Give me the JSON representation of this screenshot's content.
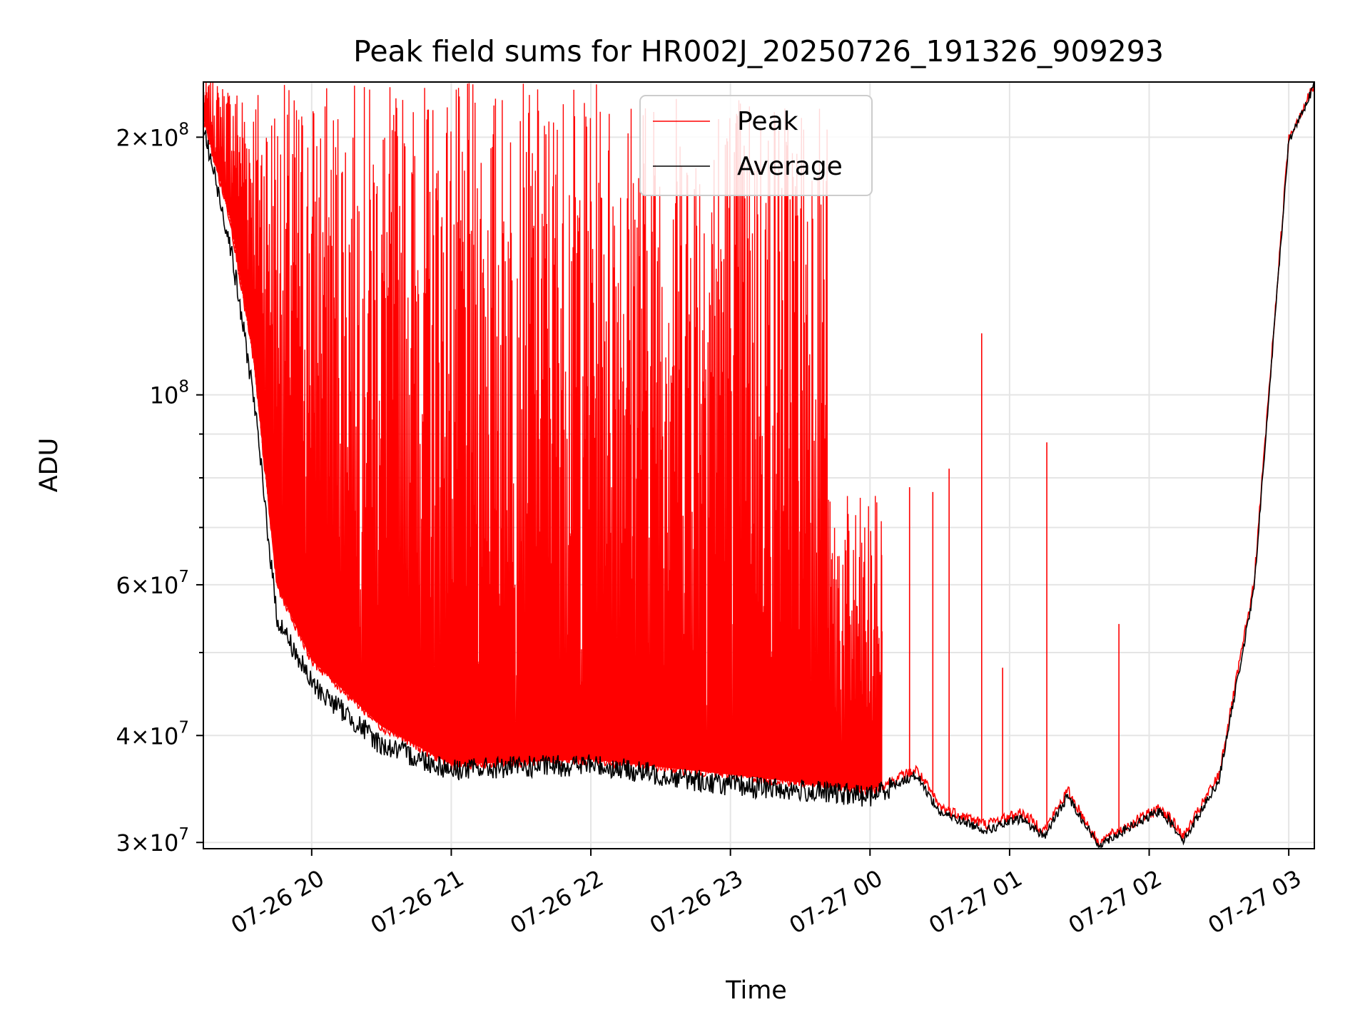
{
  "chart_data": {
    "type": "line",
    "title": "Peak field sums for HR002J_20250726_191326_909293",
    "xlabel": "Time",
    "ylabel": "ADU",
    "yscale": "log",
    "ylim": [
      29500000,
      232000000
    ],
    "xlim": [
      "2025-07-26T19:13:26",
      "2025-07-27T03:11:00"
    ],
    "grid": true,
    "legend_position": "upper-center",
    "x_ticks": [
      {
        "value": "2025-07-26T20:00:00",
        "label": "07-26 20"
      },
      {
        "value": "2025-07-26T21:00:00",
        "label": "07-26 21"
      },
      {
        "value": "2025-07-26T22:00:00",
        "label": "07-26 22"
      },
      {
        "value": "2025-07-26T23:00:00",
        "label": "07-26 23"
      },
      {
        "value": "2025-07-27T00:00:00",
        "label": "07-27 00"
      },
      {
        "value": "2025-07-27T01:00:00",
        "label": "07-27 01"
      },
      {
        "value": "2025-07-27T02:00:00",
        "label": "07-27 02"
      },
      {
        "value": "2025-07-27T03:00:00",
        "label": "07-27 03"
      }
    ],
    "y_ticks": [
      {
        "value": 30000000,
        "mant": "3",
        "exp": "7"
      },
      {
        "value": 40000000,
        "mant": "4",
        "exp": "7"
      },
      {
        "value": 60000000,
        "mant": "6",
        "exp": "7"
      },
      {
        "value": 100000000,
        "mant": "",
        "exp": "8"
      },
      {
        "value": 200000000,
        "mant": "2",
        "exp": "8"
      }
    ],
    "y_minor_ticks": [
      50000000,
      70000000,
      80000000,
      90000000
    ],
    "series": [
      {
        "name": "Peak",
        "color": "#ff0000",
        "points": [
          [
            "2025-07-26T19:13:26",
            210000000
          ],
          [
            "2025-07-26T19:25:00",
            160000000
          ],
          [
            "2025-07-26T19:35:00",
            110000000
          ],
          [
            "2025-07-26T19:45:00",
            60000000
          ],
          [
            "2025-07-26T20:00:00",
            49000000
          ],
          [
            "2025-07-26T20:30:00",
            41000000
          ],
          [
            "2025-07-26T21:00:00",
            37000000
          ],
          [
            "2025-07-26T22:00:00",
            37500000
          ],
          [
            "2025-07-26T23:00:00",
            36000000
          ],
          [
            "2025-07-27T00:00:00",
            34500000
          ],
          [
            "2025-07-27T00:20:00",
            36500000
          ],
          [
            "2025-07-27T00:30:00",
            33000000
          ],
          [
            "2025-07-27T00:50:00",
            31500000
          ],
          [
            "2025-07-27T01:05:00",
            32500000
          ],
          [
            "2025-07-27T01:15:00",
            31000000
          ],
          [
            "2025-07-27T01:25:00",
            34500000
          ],
          [
            "2025-07-27T01:38:00",
            30000000
          ],
          [
            "2025-07-27T02:05:00",
            33000000
          ],
          [
            "2025-07-27T02:15:00",
            30500000
          ],
          [
            "2025-07-27T02:30:00",
            36000000
          ],
          [
            "2025-07-27T02:45:00",
            60000000
          ],
          [
            "2025-07-27T03:00:00",
            200000000
          ],
          [
            "2025-07-27T03:11:00",
            230000000
          ]
        ],
        "spikes": [
          [
            "2025-07-27T00:05:00",
            65000000
          ],
          [
            "2025-07-27T00:17:00",
            78000000
          ],
          [
            "2025-07-27T00:27:00",
            77000000
          ],
          [
            "2025-07-27T00:34:00",
            82000000
          ],
          [
            "2025-07-27T00:48:00",
            118000000
          ],
          [
            "2025-07-27T00:57:00",
            48000000
          ],
          [
            "2025-07-27T01:16:00",
            88000000
          ],
          [
            "2025-07-27T01:47:00",
            54000000
          ]
        ]
      },
      {
        "name": "Average",
        "color": "#000000",
        "points": [
          [
            "2025-07-26T19:13:26",
            205000000
          ],
          [
            "2025-07-26T19:25:00",
            150000000
          ],
          [
            "2025-07-26T19:35:00",
            100000000
          ],
          [
            "2025-07-26T19:45:00",
            55000000
          ],
          [
            "2025-07-26T20:00:00",
            46000000
          ],
          [
            "2025-07-26T20:30:00",
            39000000
          ],
          [
            "2025-07-26T21:00:00",
            36500000
          ],
          [
            "2025-07-26T22:00:00",
            37000000
          ],
          [
            "2025-07-26T23:00:00",
            35000000
          ],
          [
            "2025-07-27T00:00:00",
            34000000
          ],
          [
            "2025-07-27T00:20:00",
            36000000
          ],
          [
            "2025-07-27T00:30:00",
            32500000
          ],
          [
            "2025-07-27T00:50:00",
            31000000
          ],
          [
            "2025-07-27T01:05:00",
            32000000
          ],
          [
            "2025-07-27T01:15:00",
            30500000
          ],
          [
            "2025-07-27T01:25:00",
            34000000
          ],
          [
            "2025-07-27T01:38:00",
            29800000
          ],
          [
            "2025-07-27T02:05:00",
            32700000
          ],
          [
            "2025-07-27T02:15:00",
            30200000
          ],
          [
            "2025-07-27T02:30:00",
            35500000
          ],
          [
            "2025-07-27T02:45:00",
            59000000
          ],
          [
            "2025-07-27T03:00:00",
            198000000
          ],
          [
            "2025-07-27T03:11:00",
            230000000
          ]
        ]
      }
    ],
    "peak_noise_band": {
      "start": "2025-07-26T19:13:26",
      "end": "2025-07-27T00:05:00",
      "max": 232000000
    }
  }
}
